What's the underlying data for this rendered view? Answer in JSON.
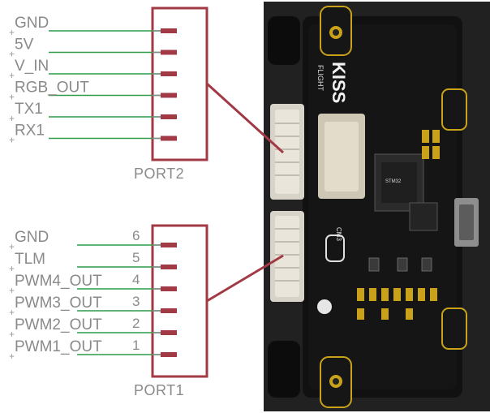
{
  "port2": {
    "name": "PORT2",
    "pins": [
      {
        "label": "GND",
        "number": ""
      },
      {
        "label": "5V",
        "number": ""
      },
      {
        "label": "V_IN",
        "number": ""
      },
      {
        "label": "RGB_OUT",
        "number": ""
      },
      {
        "label": "TX1",
        "number": ""
      },
      {
        "label": "RX1",
        "number": ""
      }
    ]
  },
  "port1": {
    "name": "PORT1",
    "pins": [
      {
        "label": "GND",
        "number": "6"
      },
      {
        "label": "TLM",
        "number": "5"
      },
      {
        "label": "PWM4_OUT",
        "number": "4"
      },
      {
        "label": "PWM3_OUT",
        "number": "3"
      },
      {
        "label": "PWM2_OUT",
        "number": "2"
      },
      {
        "label": "PWM1_OUT",
        "number": "1"
      }
    ]
  },
  "board": {
    "brand": "KISS",
    "brand_sub": "FLIGHT",
    "chip_label": "CM3"
  },
  "colors": {
    "box": "#a23a46",
    "wire": "#2f9a48",
    "text": "#8a8a8a",
    "pcb": "#121212",
    "pad": "#c9a21a"
  }
}
